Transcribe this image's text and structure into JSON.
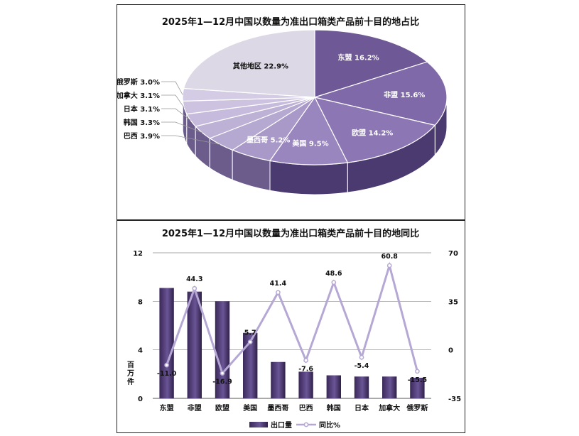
{
  "pie_chart": {
    "title": "2025年1—12月中国以数量为准出口箱类产品前十目的地占比"
  },
  "bar_chart": {
    "title": "2025年1—12月中国以数量为准出口箱类产品前十目的地同比",
    "ylabel": "百万件",
    "legend": {
      "bar": "出口量",
      "line": "同比%"
    }
  },
  "colors": {
    "bar_dark": "#3d2a5c",
    "bar_light": "#8a76b0",
    "line": "#b6a8d4",
    "pie_main": "#7b64a6",
    "pie_light": "#b8acd2",
    "pie_other": "#dddae6"
  },
  "chart_data": [
    {
      "type": "pie",
      "title": "2025年1—12月中国以数量为准出口箱类产品前十目的地占比",
      "labels": [
        "东盟",
        "非盟",
        "欧盟",
        "美国",
        "墨西哥",
        "巴西",
        "韩国",
        "日本",
        "加拿大",
        "俄罗斯",
        "其他地区"
      ],
      "values": [
        16.2,
        15.6,
        14.2,
        9.5,
        5.2,
        3.9,
        3.3,
        3.1,
        3.1,
        3.0,
        22.9
      ],
      "display": [
        "东盟 16.2%",
        "非盟 15.6%",
        "欧盟 14.2%",
        "美国 9.5%",
        "墨西哥 5.2%",
        "巴西 3.9%",
        "韩国 3.3%",
        "日本 3.1%",
        "加拿大 3.1%",
        "俄罗斯 3.0%",
        "其他地区 22.9%"
      ],
      "style": "3d-exploded-perspective"
    },
    {
      "type": "bar",
      "title": "2025年1—12月中国以数量为准出口箱类产品前十目的地同比",
      "categories": [
        "东盟",
        "非盟",
        "欧盟",
        "美国",
        "墨西哥",
        "巴西",
        "韩国",
        "日本",
        "加拿大",
        "俄罗斯"
      ],
      "ylabel": "百万件",
      "ylim": [
        0,
        12
      ],
      "yticks": [
        "0",
        "4",
        "8",
        "12"
      ],
      "y2lim": [
        -35,
        70
      ],
      "y2ticks": [
        "-35",
        "0",
        "35",
        "70"
      ],
      "grid": true,
      "legend": "bottom",
      "series": [
        {
          "name": "出口量",
          "kind": "bar",
          "axis": "left",
          "values": [
            9.1,
            8.8,
            8.0,
            5.4,
            3.0,
            2.2,
            1.9,
            1.8,
            1.8,
            1.7
          ]
        },
        {
          "name": "同比%",
          "kind": "line",
          "axis": "right",
          "values": [
            -11.0,
            44.3,
            -16.9,
            5.7,
            41.4,
            -7.6,
            48.6,
            -5.4,
            60.8,
            -15.5
          ],
          "labels": [
            "-11.0",
            "44.3",
            "-16.9",
            "5.7",
            "41.4",
            "-7.6",
            "48.6",
            "-5.4",
            "60.8",
            "-15.5"
          ]
        }
      ]
    }
  ]
}
